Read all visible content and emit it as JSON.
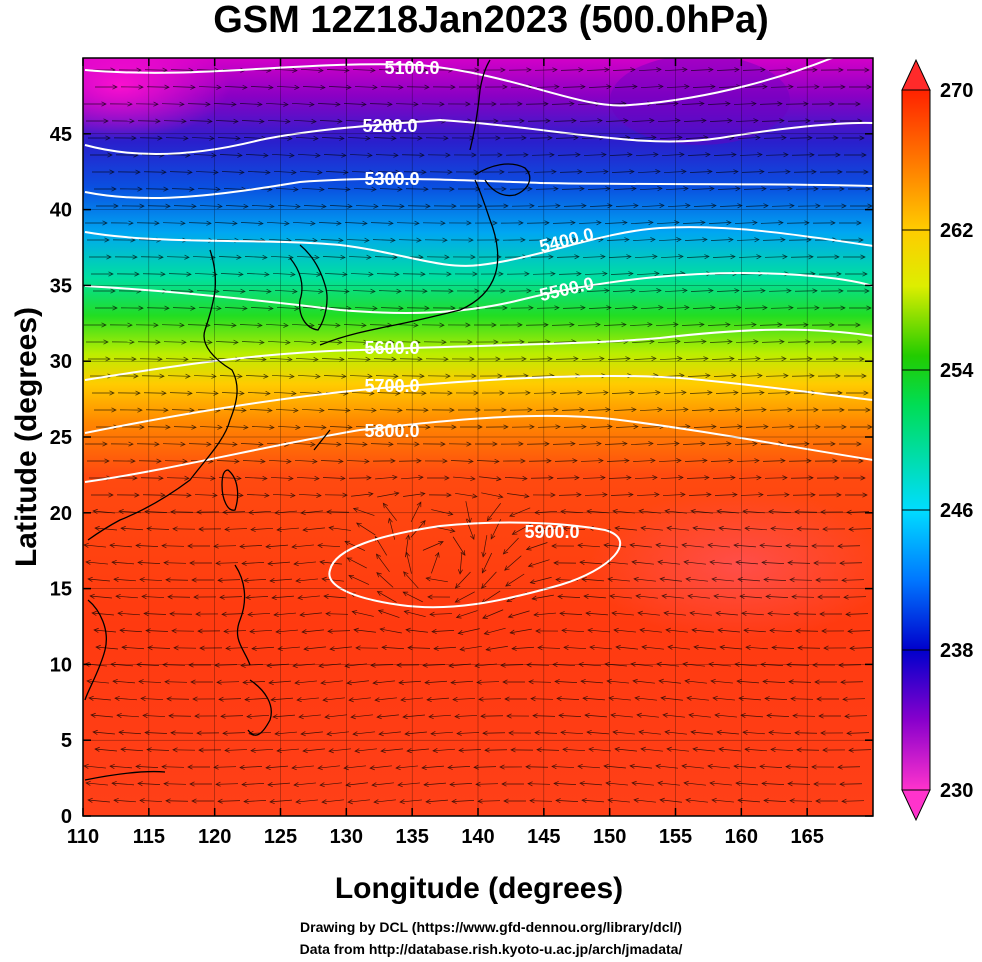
{
  "title": "GSM 12Z18Jan2023 (500.0hPa)",
  "x_axis": {
    "label": "Longitude (degrees)",
    "range": [
      110,
      170
    ],
    "ticks": [
      "110",
      "115",
      "120",
      "125",
      "130",
      "135",
      "140",
      "145",
      "150",
      "155",
      "160",
      "165"
    ]
  },
  "y_axis": {
    "label": "Latitude  (degrees)",
    "range": [
      0,
      50
    ],
    "ticks": [
      "0",
      "5",
      "10",
      "15",
      "20",
      "25",
      "30",
      "35",
      "40",
      "45"
    ]
  },
  "colorbar": {
    "range": [
      230,
      270
    ],
    "ticks": [
      "230",
      "238",
      "246",
      "254",
      "262",
      "270"
    ],
    "colors": [
      "#ff33cc",
      "#8800cc",
      "#0000cc",
      "#0077ff",
      "#00ddff",
      "#00dd55",
      "#22cc00",
      "#ddee00",
      "#ffcc00",
      "#ff7700",
      "#ff2200"
    ]
  },
  "contours": {
    "labels": [
      "5100.0",
      "5200.0",
      "5300.0",
      "5400.0",
      "5500.0",
      "5600.0",
      "5700.0",
      "5800.0",
      "5900.0"
    ]
  },
  "credits": {
    "line1": "Drawing by DCL (https://www.gfd-dennou.org/library/dcl/)",
    "line2": "Data from http://database.rish.kyoto-u.ac.jp/arch/jmadata/"
  }
}
